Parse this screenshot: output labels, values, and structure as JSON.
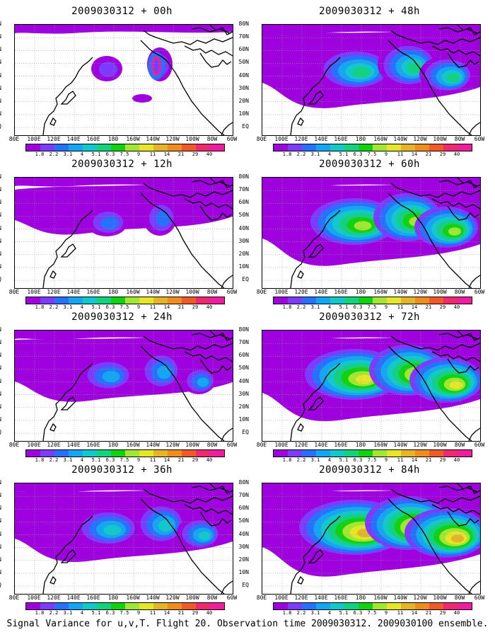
{
  "footer": "Signal Variance for u,v,T. Flight 20. Observation time 2009030312. 2009030100 ensemble.",
  "lat_labels": [
    "80N",
    "70N",
    "60N",
    "50N",
    "40N",
    "30N",
    "20N",
    "10N",
    "EQ"
  ],
  "lon_labels": [
    "80E",
    "100E",
    "120E",
    "140E",
    "160E",
    "180",
    "160W",
    "140W",
    "120W",
    "100W",
    "80W",
    "60W"
  ],
  "colorbar": {
    "levels": [
      "1.8",
      "2.2",
      "3.1",
      "4",
      "5.1",
      "6.3",
      "7.5",
      "9",
      "11",
      "14",
      "21",
      "29",
      "40"
    ],
    "colors": [
      "#9e00de",
      "#7c3cff",
      "#2870ff",
      "#14a6f2",
      "#12c8c8",
      "#12d27d",
      "#10d210",
      "#a0e632",
      "#e6e628",
      "#e6b428",
      "#ee8c1e",
      "#f05a28",
      "#f0286e",
      "#f01e9e"
    ]
  },
  "panels": [
    {
      "title": "2009030312 + 00h",
      "intensity": 0
    },
    {
      "title": "2009030312 + 48h",
      "intensity": 4
    },
    {
      "title": "2009030312 + 12h",
      "intensity": 1
    },
    {
      "title": "2009030312 + 60h",
      "intensity": 5
    },
    {
      "title": "2009030312 + 24h",
      "intensity": 2
    },
    {
      "title": "2009030312 + 72h",
      "intensity": 6
    },
    {
      "title": "2009030312 + 36h",
      "intensity": 3
    },
    {
      "title": "2009030312 + 84h",
      "intensity": 7
    }
  ]
}
